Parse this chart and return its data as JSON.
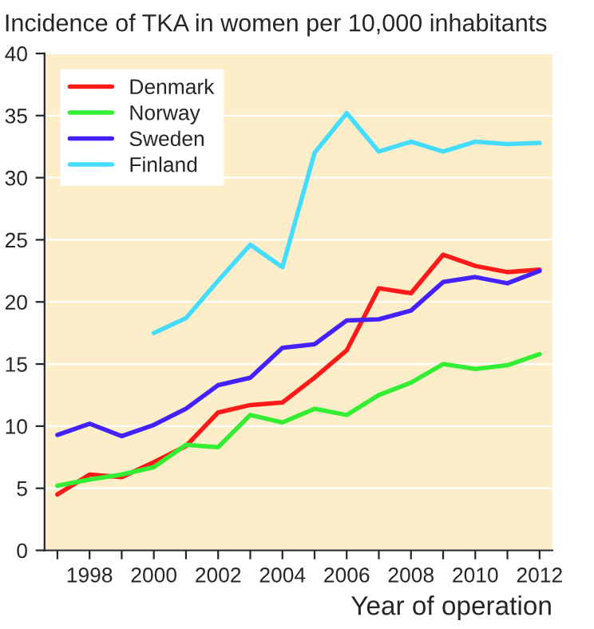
{
  "chart_data": {
    "type": "line",
    "title": "Incidence of TKA in women per 10,000 inhabitants",
    "xlabel": "Year of operation",
    "x": [
      1997,
      1998,
      1999,
      2000,
      2001,
      2002,
      2003,
      2004,
      2005,
      2006,
      2007,
      2008,
      2009,
      2010,
      2011,
      2012
    ],
    "series": [
      {
        "name": "Denmark",
        "color": "#ff1a1a",
        "values": [
          4.5,
          6.1,
          5.9,
          7.1,
          8.4,
          11.1,
          11.7,
          11.9,
          13.9,
          16.1,
          21.1,
          20.7,
          23.8,
          22.9,
          22.4,
          22.6
        ]
      },
      {
        "name": "Norway",
        "color": "#33ee33",
        "values": [
          5.2,
          5.7,
          6.1,
          6.7,
          8.5,
          8.3,
          10.9,
          10.3,
          11.4,
          10.9,
          12.5,
          13.5,
          15.0,
          14.6,
          14.9,
          15.8
        ]
      },
      {
        "name": "Sweden",
        "color": "#4422ff",
        "values": [
          9.3,
          10.2,
          9.2,
          10.1,
          11.4,
          13.3,
          13.9,
          16.3,
          16.6,
          18.5,
          18.6,
          19.3,
          21.6,
          22.0,
          21.5,
          22.5
        ]
      },
      {
        "name": "Finland",
        "color": "#44ddff",
        "x": [
          2000,
          2001,
          2002,
          2003,
          2004,
          2005,
          2006,
          2007,
          2008,
          2009,
          2010,
          2011,
          2012
        ],
        "values": [
          17.5,
          18.7,
          21.7,
          24.6,
          22.8,
          32.0,
          35.2,
          32.1,
          32.9,
          32.1,
          32.9,
          32.7,
          32.8
        ]
      }
    ],
    "xlim": [
      1996.6,
      2012.4
    ],
    "xticks": [
      {
        "value": 1997,
        "label": null
      },
      1998,
      {
        "value": 1999,
        "label": null
      },
      2000,
      {
        "value": 2001,
        "label": null
      },
      2002,
      {
        "value": 2003,
        "label": null
      },
      2004,
      {
        "value": 2005,
        "label": null
      },
      2006,
      {
        "value": 2007,
        "label": null
      },
      2008,
      {
        "value": 2009,
        "label": null
      },
      2010,
      {
        "value": 2011,
        "label": null
      },
      2012
    ],
    "ylim": [
      0,
      40
    ],
    "yticks": [
      0,
      5,
      10,
      15,
      20,
      25,
      30,
      35,
      40
    ],
    "grid": "y",
    "legend": "top left",
    "marker": "none",
    "line_style": "solid"
  }
}
